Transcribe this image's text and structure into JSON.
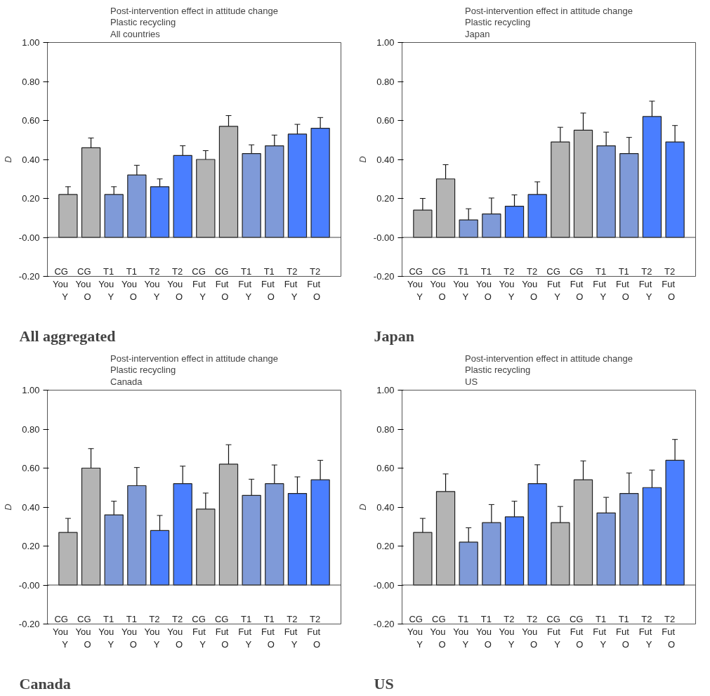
{
  "chart_data": [
    {
      "type": "bar",
      "title": "Post-intervention effect in attitude change\nPlastic recycling\nAll countries",
      "ylabel": "D",
      "annotations": [
        "All aggregated"
      ],
      "categories": [
        "CG\nYou\nY",
        "CG\nYou\nO",
        "T1\nYou\nY",
        "T1\nYou\nO",
        "T2\nYou\nY",
        "T2\nYou\nO",
        "CG\nFut\nY",
        "CG\nFut\nO",
        "T1\nFut\nY",
        "T1\nFut\nO",
        "T2\nFut\nY",
        "T2\nFut\nO"
      ],
      "ref_lines": [
        {
          "axis": "y",
          "value": 0
        }
      ],
      "values": [
        0.22,
        0.46,
        0.22,
        0.32,
        0.26,
        0.42,
        0.4,
        0.57,
        0.43,
        0.47,
        0.53,
        0.56
      ],
      "errors": [
        0.04,
        0.05,
        0.04,
        0.05,
        0.04,
        0.05,
        0.045,
        0.055,
        0.045,
        0.055,
        0.05,
        0.055
      ],
      "colors": [
        "#b4b4b4",
        "#b4b4b4",
        "#7f9ad8",
        "#7f9ad8",
        "#4a7eff",
        "#4a7eff",
        "#b4b4b4",
        "#b4b4b4",
        "#7f9ad8",
        "#7f9ad8",
        "#4a7eff",
        "#4a7eff"
      ],
      "ylim": [
        -0.2,
        1.0
      ],
      "yticks": [
        {
          "value": -0.2,
          "label": "-0.20"
        },
        {
          "value": 0,
          "label": "-0.00"
        },
        {
          "value": 0.2,
          "label": "0.20"
        },
        {
          "value": 0.4,
          "label": "0.40"
        },
        {
          "value": 0.6,
          "label": "0.60"
        },
        {
          "value": 0.8,
          "label": "0.80"
        },
        {
          "value": 1.0,
          "label": "1.00"
        }
      ],
      "grid": false
    },
    {
      "type": "bar",
      "title": "Post-intervention effect in attitude change\nPlastic recycling\nJapan",
      "ylabel": "D",
      "annotations": [
        "Japan"
      ],
      "categories": [
        "CG\nYou\nY",
        "CG\nYou\nO",
        "T1\nYou\nY",
        "T1\nYou\nO",
        "T2\nYou\nY",
        "T2\nYou\nO",
        "CG\nFut\nY",
        "CG\nFut\nO",
        "T1\nFut\nY",
        "T1\nFut\nO",
        "T2\nFut\nY",
        "T2\nFut\nO"
      ],
      "ref_lines": [
        {
          "axis": "y",
          "value": 0
        }
      ],
      "values": [
        0.14,
        0.3,
        0.09,
        0.12,
        0.16,
        0.22,
        0.49,
        0.55,
        0.47,
        0.43,
        0.62,
        0.49
      ],
      "errors": [
        0.06,
        0.073,
        0.057,
        0.082,
        0.058,
        0.065,
        0.075,
        0.088,
        0.07,
        0.083,
        0.079,
        0.084
      ],
      "colors": [
        "#b4b4b4",
        "#b4b4b4",
        "#7f9ad8",
        "#7f9ad8",
        "#4a7eff",
        "#4a7eff",
        "#b4b4b4",
        "#b4b4b4",
        "#7f9ad8",
        "#7f9ad8",
        "#4a7eff",
        "#4a7eff"
      ],
      "ylim": [
        -0.2,
        1.0
      ],
      "yticks": [
        {
          "value": -0.2,
          "label": "-0.20"
        },
        {
          "value": 0,
          "label": "-0.00"
        },
        {
          "value": 0.2,
          "label": "0.20"
        },
        {
          "value": 0.4,
          "label": "0.40"
        },
        {
          "value": 0.6,
          "label": "0.60"
        },
        {
          "value": 0.8,
          "label": "0.80"
        },
        {
          "value": 1.0,
          "label": "1.00"
        }
      ],
      "grid": false
    },
    {
      "type": "bar",
      "title": "Post-intervention effect in attitude change\nPlastic recycling\nCanada",
      "ylabel": "D",
      "annotations": [
        "Canada"
      ],
      "categories": [
        "CG\nYou\nY",
        "CG\nYou\nO",
        "T1\nYou\nY",
        "T1\nYou\nO",
        "T2\nYou\nY",
        "T2\nYou\nO",
        "CG\nFut\nY",
        "CG\nFut\nO",
        "T1\nFut\nY",
        "T1\nFut\nO",
        "T2\nFut\nY",
        "T2\nFut\nO"
      ],
      "ref_lines": [
        {
          "axis": "y",
          "value": 0
        }
      ],
      "values": [
        0.27,
        0.6,
        0.36,
        0.51,
        0.28,
        0.52,
        0.39,
        0.62,
        0.46,
        0.52,
        0.47,
        0.54
      ],
      "errors": [
        0.072,
        0.1,
        0.07,
        0.093,
        0.077,
        0.09,
        0.082,
        0.1,
        0.083,
        0.096,
        0.085,
        0.1
      ],
      "colors": [
        "#b4b4b4",
        "#b4b4b4",
        "#7f9ad8",
        "#7f9ad8",
        "#4a7eff",
        "#4a7eff",
        "#b4b4b4",
        "#b4b4b4",
        "#7f9ad8",
        "#7f9ad8",
        "#4a7eff",
        "#4a7eff"
      ],
      "ylim": [
        -0.2,
        1.0
      ],
      "yticks": [
        {
          "value": -0.2,
          "label": "-0.20"
        },
        {
          "value": 0,
          "label": "-0.00"
        },
        {
          "value": 0.2,
          "label": "0.20"
        },
        {
          "value": 0.4,
          "label": "0.40"
        },
        {
          "value": 0.6,
          "label": "0.60"
        },
        {
          "value": 0.8,
          "label": "0.80"
        },
        {
          "value": 1.0,
          "label": "1.00"
        }
      ],
      "grid": false
    },
    {
      "type": "bar",
      "title": "Post-intervention effect in attitude change\nPlastic recycling\nUS",
      "ylabel": "D",
      "annotations": [
        "US"
      ],
      "categories": [
        "CG\nYou\nY",
        "CG\nYou\nO",
        "T1\nYou\nY",
        "T1\nYou\nO",
        "T2\nYou\nY",
        "T2\nYou\nO",
        "CG\nFut\nY",
        "CG\nFut\nO",
        "T1\nFut\nY",
        "T1\nFut\nO",
        "T2\nFut\nY",
        "T2\nFut\nO"
      ],
      "ref_lines": [
        {
          "axis": "y",
          "value": 0
        }
      ],
      "values": [
        0.27,
        0.48,
        0.22,
        0.32,
        0.35,
        0.52,
        0.32,
        0.54,
        0.37,
        0.47,
        0.5,
        0.64
      ],
      "errors": [
        0.072,
        0.09,
        0.074,
        0.093,
        0.08,
        0.097,
        0.083,
        0.097,
        0.08,
        0.105,
        0.09,
        0.107
      ],
      "colors": [
        "#b4b4b4",
        "#b4b4b4",
        "#7f9ad8",
        "#7f9ad8",
        "#4a7eff",
        "#4a7eff",
        "#b4b4b4",
        "#b4b4b4",
        "#7f9ad8",
        "#7f9ad8",
        "#4a7eff",
        "#4a7eff"
      ],
      "ylim": [
        -0.2,
        1.0
      ],
      "yticks": [
        {
          "value": -0.2,
          "label": "-0.20"
        },
        {
          "value": 0,
          "label": "-0.00"
        },
        {
          "value": 0.2,
          "label": "0.20"
        },
        {
          "value": 0.4,
          "label": "0.40"
        },
        {
          "value": 0.6,
          "label": "0.60"
        },
        {
          "value": 0.8,
          "label": "0.80"
        },
        {
          "value": 1.0,
          "label": "1.00"
        }
      ],
      "grid": false
    }
  ]
}
